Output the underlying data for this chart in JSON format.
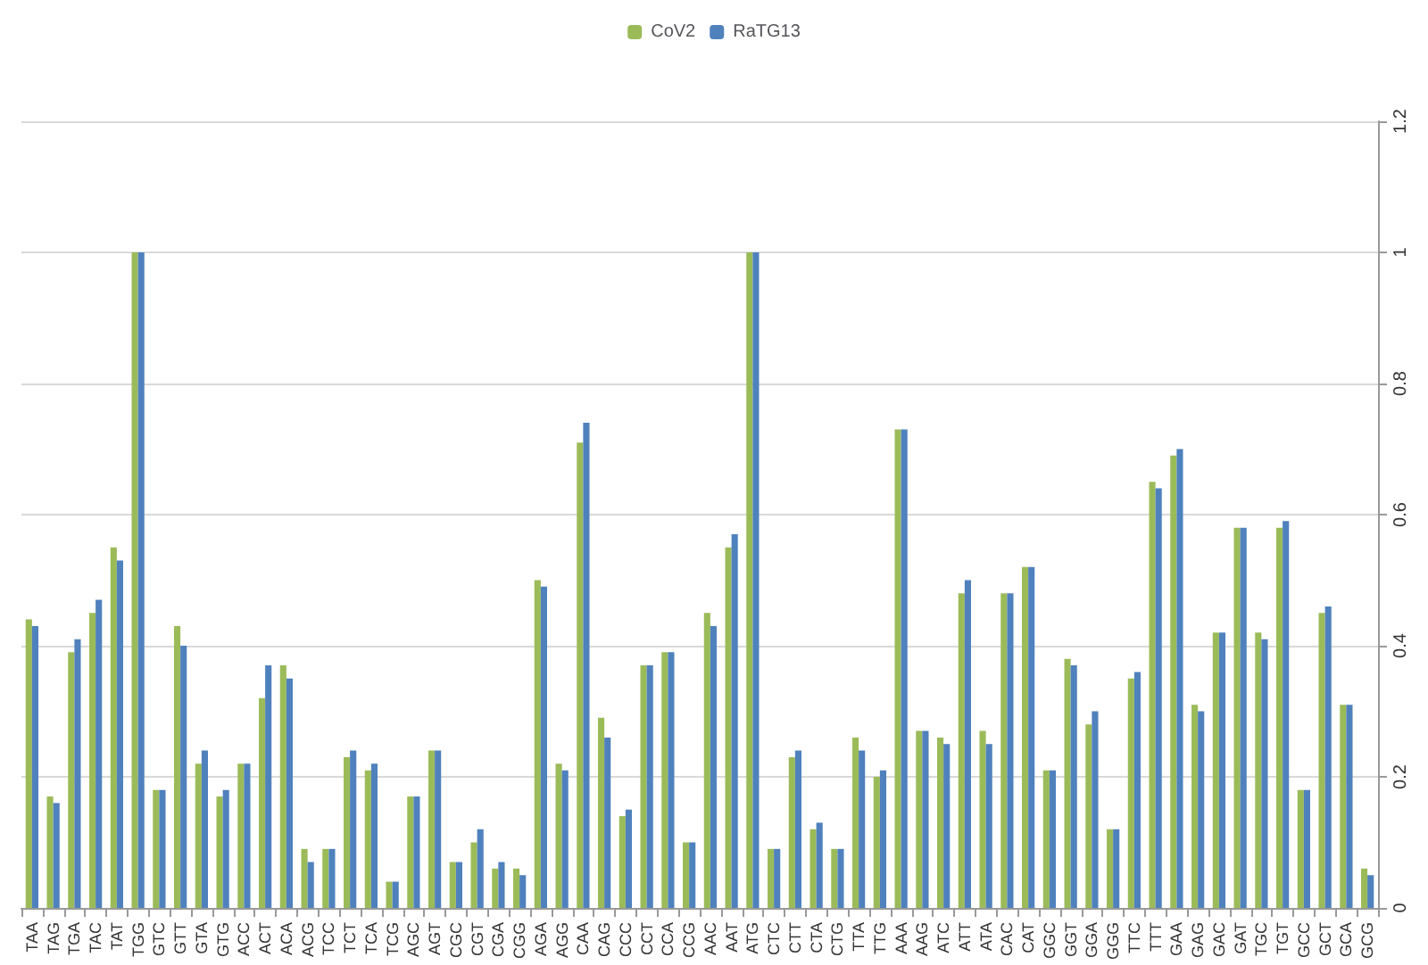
{
  "chart_data": {
    "type": "bar",
    "categories": [
      "TAA",
      "TAG",
      "TGA",
      "TAC",
      "TAT",
      "TGG",
      "GTC",
      "GTT",
      "GTA",
      "GTG",
      "ACC",
      "ACT",
      "ACA",
      "ACG",
      "TCC",
      "TCT",
      "TCA",
      "TCG",
      "AGC",
      "AGT",
      "CGC",
      "CGT",
      "CGA",
      "CGG",
      "AGA",
      "AGG",
      "CAA",
      "CAG",
      "CCC",
      "CCT",
      "CCA",
      "CCG",
      "AAC",
      "AAT",
      "ATG",
      "CTC",
      "CTT",
      "CTA",
      "CTG",
      "TTA",
      "TTG",
      "AAA",
      "AAG",
      "ATC",
      "ATT",
      "ATA",
      "CAC",
      "CAT",
      "GGC",
      "GGT",
      "GGA",
      "GGG",
      "TTC",
      "TTT",
      "GAA",
      "GAG",
      "GAC",
      "GAT",
      "TGC",
      "TGT",
      "GCC",
      "GCT",
      "GCA",
      "GCG"
    ],
    "series": [
      {
        "name": "CoV2",
        "color": "#9bbb59",
        "values": [
          0.44,
          0.17,
          0.39,
          0.45,
          0.55,
          1,
          0.18,
          0.43,
          0.22,
          0.17,
          0.22,
          0.32,
          0.37,
          0.09,
          0.09,
          0.23,
          0.21,
          0.04,
          0.17,
          0.24,
          0.07,
          0.1,
          0.06,
          0.06,
          0.5,
          0.22,
          0.71,
          0.29,
          0.14,
          0.37,
          0.39,
          0.1,
          0.45,
          0.55,
          1,
          0.09,
          0.23,
          0.12,
          0.09,
          0.26,
          0.2,
          0.73,
          0.27,
          0.26,
          0.48,
          0.27,
          0.48,
          0.52,
          0.21,
          0.38,
          0.28,
          0.12,
          0.35,
          0.65,
          0.69,
          0.31,
          0.42,
          0.58,
          0.42,
          0.58,
          0.18,
          0.45,
          0.31,
          0.06
        ]
      },
      {
        "name": "RaTG13",
        "color": "#4f81bd",
        "values": [
          0.43,
          0.16,
          0.41,
          0.47,
          0.53,
          1,
          0.18,
          0.4,
          0.24,
          0.18,
          0.22,
          0.37,
          0.35,
          0.07,
          0.09,
          0.24,
          0.22,
          0.04,
          0.17,
          0.24,
          0.07,
          0.12,
          0.07,
          0.05,
          0.49,
          0.21,
          0.74,
          0.26,
          0.15,
          0.37,
          0.39,
          0.1,
          0.43,
          0.57,
          1,
          0.09,
          0.24,
          0.13,
          0.09,
          0.24,
          0.21,
          0.73,
          0.27,
          0.25,
          0.5,
          0.25,
          0.48,
          0.52,
          0.21,
          0.37,
          0.3,
          0.12,
          0.36,
          0.64,
          0.7,
          0.3,
          0.42,
          0.58,
          0.41,
          0.59,
          0.18,
          0.46,
          0.31,
          0.05
        ]
      }
    ],
    "ylim": [
      0,
      1.2
    ],
    "yticks": [
      0,
      0.2,
      0.4,
      0.6,
      0.8,
      1,
      1.2
    ],
    "grid": "y",
    "legend": "top"
  }
}
